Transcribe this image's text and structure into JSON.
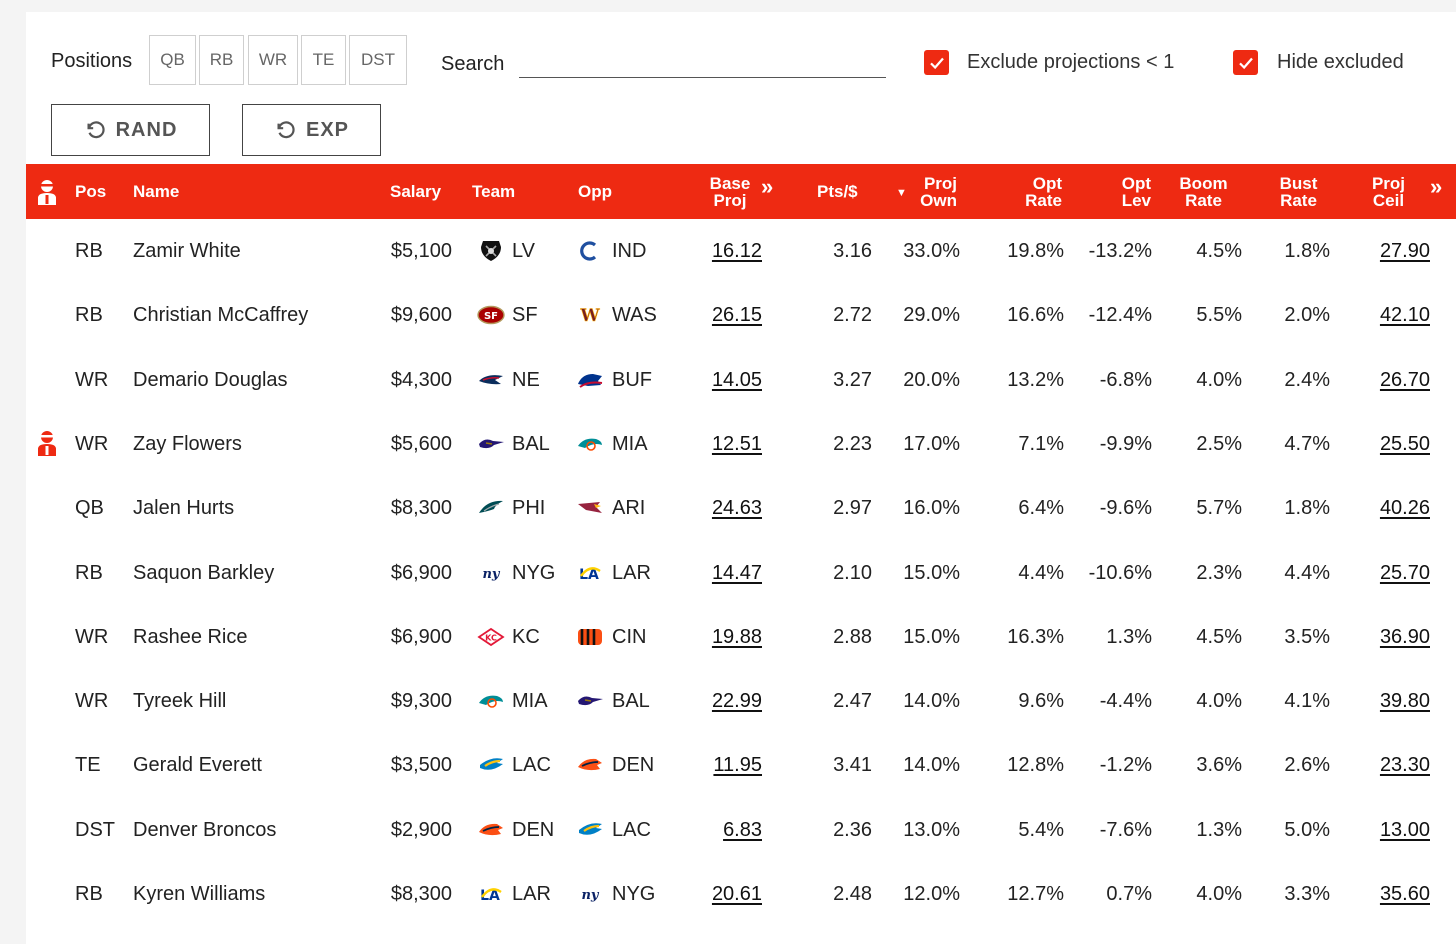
{
  "controls": {
    "positions_label": "Positions",
    "positions": [
      "QB",
      "RB",
      "WR",
      "TE",
      "DST"
    ],
    "search_label": "Search",
    "search_value": "",
    "exclude_label": "Exclude projections < 1",
    "exclude_checked": true,
    "hide_label": "Hide excluded",
    "hide_checked": true,
    "rand_label": "RAND",
    "exp_label": "EXP"
  },
  "headers": {
    "pos": "Pos",
    "name": "Name",
    "salary": "Salary",
    "team": "Team",
    "opp": "Opp",
    "base_proj_1": "Base",
    "base_proj_2": "Proj",
    "pts_per": "Pts/$",
    "proj_own_1": "Proj",
    "proj_own_2": "Own",
    "opt_rate_1": "Opt",
    "opt_rate_2": "Rate",
    "opt_lev_1": "Opt",
    "opt_lev_2": "Lev",
    "boom_1": "Boom",
    "boom_2": "Rate",
    "bust_1": "Bust",
    "bust_2": "Rate",
    "ceil_1": "Proj",
    "ceil_2": "Ceil"
  },
  "colors": {
    "accent": "#ee2a12"
  },
  "rows": [
    {
      "pos": "RB",
      "name": "Zamir White",
      "salary": "$5,100",
      "team": "LV",
      "team_logo": "raiders-logo-icon",
      "opp": "IND",
      "opp_logo": "colts-logo-icon",
      "proj": "16.12",
      "pts": "3.16",
      "own": "33.0%",
      "opt_rate": "19.8%",
      "opt_lev": "-13.2%",
      "boom": "4.5%",
      "bust": "1.8%",
      "ceil": "27.90",
      "star": false
    },
    {
      "pos": "RB",
      "name": "Christian McCaffrey",
      "salary": "$9,600",
      "team": "SF",
      "team_logo": "49ers-logo-icon",
      "opp": "WAS",
      "opp_logo": "commanders-logo-icon",
      "proj": "26.15",
      "pts": "2.72",
      "own": "29.0%",
      "opt_rate": "16.6%",
      "opt_lev": "-12.4%",
      "boom": "5.5%",
      "bust": "2.0%",
      "ceil": "42.10",
      "star": false
    },
    {
      "pos": "WR",
      "name": "Demario Douglas",
      "salary": "$4,300",
      "team": "NE",
      "team_logo": "patriots-logo-icon",
      "opp": "BUF",
      "opp_logo": "bills-logo-icon",
      "proj": "14.05",
      "pts": "3.27",
      "own": "20.0%",
      "opt_rate": "13.2%",
      "opt_lev": "-6.8%",
      "boom": "4.0%",
      "bust": "2.4%",
      "ceil": "26.70",
      "star": false
    },
    {
      "pos": "WR",
      "name": "Zay Flowers",
      "salary": "$5,600",
      "team": "BAL",
      "team_logo": "ravens-logo-icon",
      "opp": "MIA",
      "opp_logo": "dolphins-logo-icon",
      "proj": "12.51",
      "pts": "2.23",
      "own": "17.0%",
      "opt_rate": "7.1%",
      "opt_lev": "-9.9%",
      "boom": "2.5%",
      "bust": "4.7%",
      "ceil": "25.50",
      "star": true
    },
    {
      "pos": "QB",
      "name": "Jalen Hurts",
      "salary": "$8,300",
      "team": "PHI",
      "team_logo": "eagles-logo-icon",
      "opp": "ARI",
      "opp_logo": "cardinals-logo-icon",
      "proj": "24.63",
      "pts": "2.97",
      "own": "16.0%",
      "opt_rate": "6.4%",
      "opt_lev": "-9.6%",
      "boom": "5.7%",
      "bust": "1.8%",
      "ceil": "40.26",
      "star": false
    },
    {
      "pos": "RB",
      "name": "Saquon Barkley",
      "salary": "$6,900",
      "team": "NYG",
      "team_logo": "giants-logo-icon",
      "opp": "LAR",
      "opp_logo": "rams-logo-icon",
      "proj": "14.47",
      "pts": "2.10",
      "own": "15.0%",
      "opt_rate": "4.4%",
      "opt_lev": "-10.6%",
      "boom": "2.3%",
      "bust": "4.4%",
      "ceil": "25.70",
      "star": false
    },
    {
      "pos": "WR",
      "name": "Rashee Rice",
      "salary": "$6,900",
      "team": "KC",
      "team_logo": "chiefs-logo-icon",
      "opp": "CIN",
      "opp_logo": "bengals-logo-icon",
      "proj": "19.88",
      "pts": "2.88",
      "own": "15.0%",
      "opt_rate": "16.3%",
      "opt_lev": "1.3%",
      "boom": "4.5%",
      "bust": "3.5%",
      "ceil": "36.90",
      "star": false
    },
    {
      "pos": "WR",
      "name": "Tyreek Hill",
      "salary": "$9,300",
      "team": "MIA",
      "team_logo": "dolphins-logo-icon",
      "opp": "BAL",
      "opp_logo": "ravens-logo-icon",
      "proj": "22.99",
      "pts": "2.47",
      "own": "14.0%",
      "opt_rate": "9.6%",
      "opt_lev": "-4.4%",
      "boom": "4.0%",
      "bust": "4.1%",
      "ceil": "39.80",
      "star": false
    },
    {
      "pos": "TE",
      "name": "Gerald Everett",
      "salary": "$3,500",
      "team": "LAC",
      "team_logo": "chargers-logo-icon",
      "opp": "DEN",
      "opp_logo": "broncos-logo-icon",
      "proj": "11.95",
      "pts": "3.41",
      "own": "14.0%",
      "opt_rate": "12.8%",
      "opt_lev": "-1.2%",
      "boom": "3.6%",
      "bust": "2.6%",
      "ceil": "23.30",
      "star": false
    },
    {
      "pos": "DST",
      "name": "Denver Broncos",
      "salary": "$2,900",
      "team": "DEN",
      "team_logo": "broncos-logo-icon",
      "opp": "LAC",
      "opp_logo": "chargers-logo-icon",
      "proj": "6.83",
      "pts": "2.36",
      "own": "13.0%",
      "opt_rate": "5.4%",
      "opt_lev": "-7.6%",
      "boom": "1.3%",
      "bust": "5.0%",
      "ceil": "13.00",
      "star": false
    },
    {
      "pos": "RB",
      "name": "Kyren Williams",
      "salary": "$8,300",
      "team": "LAR",
      "team_logo": "rams-logo-icon",
      "opp": "NYG",
      "opp_logo": "giants-logo-icon",
      "proj": "20.61",
      "pts": "2.48",
      "own": "12.0%",
      "opt_rate": "12.7%",
      "opt_lev": "0.7%",
      "boom": "4.0%",
      "bust": "3.3%",
      "ceil": "35.60",
      "star": false
    }
  ]
}
